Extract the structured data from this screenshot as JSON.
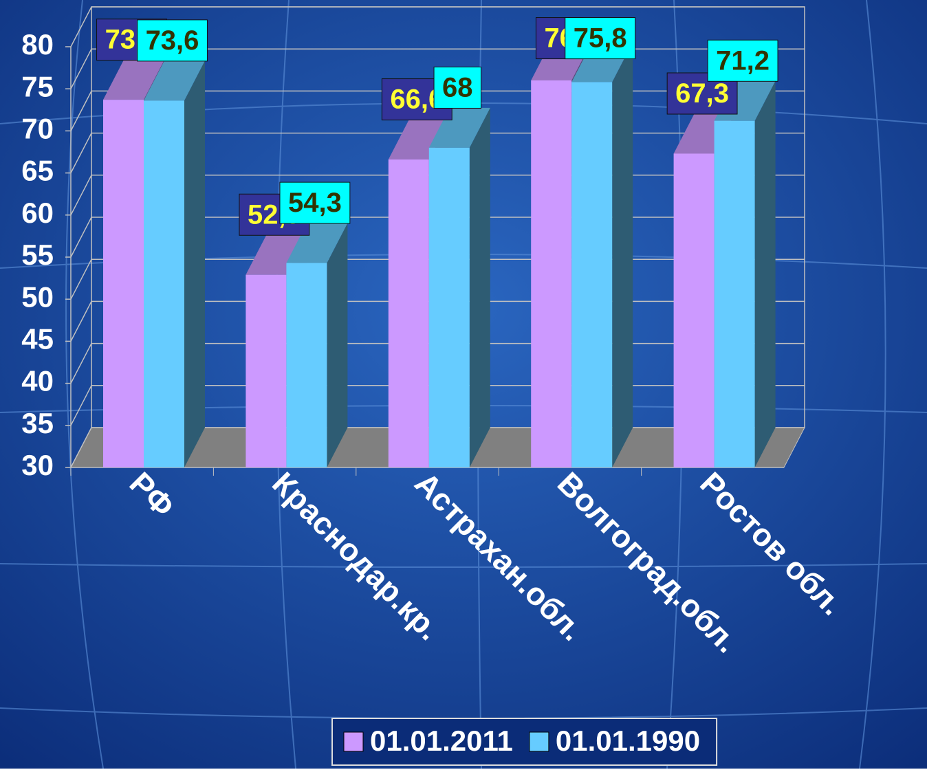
{
  "chart_data": {
    "type": "bar3d",
    "categories": [
      "РФ",
      "Краснодар.кр.",
      "Астрахан.обл.",
      "Волгоград.обл.",
      "Ростов обл."
    ],
    "series": [
      {
        "name": "01.01.2011",
        "color": "#cc99ff",
        "values": [
          73.7,
          52.9,
          66.6,
          76,
          67.3
        ],
        "value_labels": [
          "73,7",
          "52,9",
          "66,6",
          "76",
          "67,3"
        ]
      },
      {
        "name": "01.01.1990",
        "color": "#66ccff",
        "values": [
          73.6,
          54.3,
          68,
          75.8,
          71.2
        ],
        "value_labels": [
          "73,6",
          "54,3",
          "68",
          "75,8",
          "71,2"
        ]
      }
    ],
    "ylim": [
      30,
      80
    ],
    "yticks": [
      30,
      35,
      40,
      45,
      50,
      55,
      60,
      65,
      70,
      75,
      80
    ],
    "grid": true,
    "legend": "bottom"
  }
}
